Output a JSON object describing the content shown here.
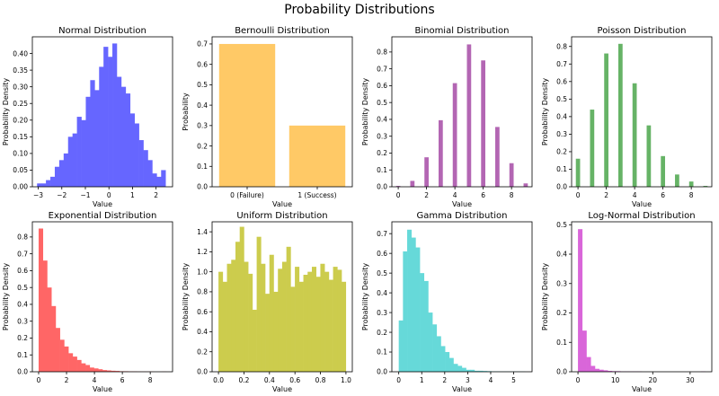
{
  "figure": {
    "title": "Probability Distributions"
  },
  "chart_data": [
    {
      "type": "bar",
      "title": "Normal Distribution",
      "xlabel": "Value",
      "ylabel": "Probability Density",
      "color": "#6666ff",
      "histogram": true,
      "xlim": [
        -3.25,
        2.7
      ],
      "ylim": [
        0,
        0.45
      ],
      "xticks": [
        -3,
        -2,
        -1,
        0,
        1,
        2
      ],
      "xticklabels": [
        "−3",
        "−2",
        "−1",
        "0",
        "1",
        "2"
      ],
      "yticks": [
        0,
        0.05,
        0.1,
        0.15,
        0.2,
        0.25,
        0.3,
        0.35,
        0.4
      ],
      "yticklabels": [
        "0.00",
        "0.05",
        "0.10",
        "0.15",
        "0.20",
        "0.25",
        "0.30",
        "0.35",
        "0.40"
      ],
      "bin_start": -3.05,
      "bin_width": 0.188,
      "values": [
        0.01,
        0.01,
        0.02,
        0.03,
        0.06,
        0.08,
        0.1,
        0.15,
        0.16,
        0.21,
        0.2,
        0.27,
        0.32,
        0.29,
        0.36,
        0.42,
        0.39,
        0.43,
        0.33,
        0.3,
        0.28,
        0.22,
        0.19,
        0.14,
        0.11,
        0.08,
        0.04,
        0.03,
        0.05
      ]
    },
    {
      "type": "bar",
      "title": "Bernoulli Distribution",
      "xlabel": "Value",
      "ylabel": "Probability",
      "color": "#ffc966",
      "categories": [
        "0 (Failure)",
        "1 (Success)"
      ],
      "values": [
        0.7,
        0.3
      ],
      "ylim": [
        0,
        0.735
      ],
      "yticks": [
        0,
        0.1,
        0.2,
        0.3,
        0.4,
        0.5,
        0.6,
        0.7
      ],
      "yticklabels": [
        "0.0",
        "0.1",
        "0.2",
        "0.3",
        "0.4",
        "0.5",
        "0.6",
        "0.7"
      ]
    },
    {
      "type": "bar",
      "title": "Binomial Distribution",
      "xlabel": "Value",
      "ylabel": "Probability Density",
      "color": "#b366b3",
      "histogram": true,
      "xlim": [
        -0.45,
        9.45
      ],
      "ylim": [
        0,
        0.89
      ],
      "xticks": [
        0,
        2,
        4,
        6,
        8
      ],
      "xticklabels": [
        "0",
        "2",
        "4",
        "6",
        "8"
      ],
      "yticks": [
        0,
        0.1,
        0.2,
        0.3,
        0.4,
        0.5,
        0.6,
        0.7,
        0.8
      ],
      "yticklabels": [
        "0.0",
        "0.1",
        "0.2",
        "0.3",
        "0.4",
        "0.5",
        "0.6",
        "0.7",
        "0.8"
      ],
      "bin_start": 0,
      "bin_width": 0.3,
      "bars": [
        [
          0,
          0.005
        ],
        [
          1,
          0.035
        ],
        [
          2,
          0.175
        ],
        [
          3,
          0.395
        ],
        [
          4,
          0.615
        ],
        [
          5,
          0.845
        ],
        [
          6,
          0.75
        ],
        [
          7,
          0.355
        ],
        [
          8,
          0.14
        ],
        [
          9,
          0.02
        ]
      ]
    },
    {
      "type": "bar",
      "title": "Poisson Distribution",
      "xlabel": "Value",
      "ylabel": "Probability Density",
      "color": "#66b366",
      "histogram": true,
      "xlim": [
        -0.45,
        9.45
      ],
      "ylim": [
        0,
        0.855
      ],
      "xticks": [
        0,
        2,
        4,
        6,
        8
      ],
      "xticklabels": [
        "0",
        "2",
        "4",
        "6",
        "8"
      ],
      "yticks": [
        0,
        0.1,
        0.2,
        0.3,
        0.4,
        0.5,
        0.6,
        0.7,
        0.8
      ],
      "yticklabels": [
        "0.0",
        "0.1",
        "0.2",
        "0.3",
        "0.4",
        "0.5",
        "0.6",
        "0.7",
        "0.8"
      ],
      "bin_start": 0,
      "bin_width": 0.3,
      "bars": [
        [
          0,
          0.16
        ],
        [
          1,
          0.44
        ],
        [
          2,
          0.76
        ],
        [
          3,
          0.815
        ],
        [
          4,
          0.59
        ],
        [
          5,
          0.35
        ],
        [
          6,
          0.175
        ],
        [
          7,
          0.07
        ],
        [
          8,
          0.03
        ],
        [
          9,
          0.005
        ]
      ]
    },
    {
      "type": "bar",
      "title": "Exponential Distribution",
      "xlabel": "Value",
      "ylabel": "Probability Density",
      "color": "#ff6666",
      "histogram": true,
      "xlim": [
        -0.45,
        9.6
      ],
      "ylim": [
        0,
        0.89
      ],
      "xticks": [
        0,
        2,
        4,
        6,
        8
      ],
      "xticklabels": [
        "0",
        "2",
        "4",
        "6",
        "8"
      ],
      "yticks": [
        0,
        0.1,
        0.2,
        0.3,
        0.4,
        0.5,
        0.6,
        0.7,
        0.8
      ],
      "yticklabels": [
        "0.0",
        "0.1",
        "0.2",
        "0.3",
        "0.4",
        "0.5",
        "0.6",
        "0.7",
        "0.8"
      ],
      "bin_start": 0,
      "bin_width": 0.305,
      "values": [
        0.85,
        0.66,
        0.5,
        0.39,
        0.26,
        0.19,
        0.15,
        0.11,
        0.09,
        0.07,
        0.05,
        0.04,
        0.025,
        0.02,
        0.015,
        0.01,
        0.008,
        0.006,
        0.005,
        0.003,
        0.003,
        0.002,
        0.002,
        0.001,
        0.001,
        0.001,
        0.001,
        0,
        0,
        0.001
      ]
    },
    {
      "type": "bar",
      "title": "Uniform Distribution",
      "xlabel": "Value",
      "ylabel": "Probability Density",
      "color": "#cccc4d",
      "histogram": true,
      "xlim": [
        -0.05,
        1.05
      ],
      "ylim": [
        0,
        1.5
      ],
      "xticks": [
        0,
        0.2,
        0.4,
        0.6,
        0.8,
        1.0
      ],
      "xticklabels": [
        "0.0",
        "0.2",
        "0.4",
        "0.6",
        "0.8",
        "1.0"
      ],
      "yticks": [
        0,
        0.2,
        0.4,
        0.6,
        0.8,
        1.0,
        1.2,
        1.4
      ],
      "yticklabels": [
        "0.0",
        "0.2",
        "0.4",
        "0.6",
        "0.8",
        "1.0",
        "1.2",
        "1.4"
      ],
      "bin_start": 0,
      "bin_width": 0.0333,
      "values": [
        1.0,
        0.9,
        1.08,
        1.12,
        1.3,
        1.45,
        1.1,
        0.98,
        0.62,
        1.35,
        1.08,
        0.78,
        1.17,
        0.8,
        1.03,
        1.1,
        1.25,
        0.85,
        1.05,
        0.9,
        0.97,
        1.0,
        1.05,
        0.95,
        1.08,
        1.0,
        0.92,
        1.05,
        1.02,
        0.9
      ]
    },
    {
      "type": "bar",
      "title": "Gamma Distribution",
      "xlabel": "Value",
      "ylabel": "Probability Density",
      "color": "#66d9d9",
      "histogram": true,
      "xlim": [
        -0.3,
        5.8
      ],
      "ylim": [
        0,
        0.76
      ],
      "xticks": [
        0,
        1,
        2,
        3,
        4,
        5
      ],
      "xticklabels": [
        "0",
        "1",
        "2",
        "3",
        "4",
        "5"
      ],
      "yticks": [
        0,
        0.1,
        0.2,
        0.3,
        0.4,
        0.5,
        0.6,
        0.7
      ],
      "yticklabels": [
        "0.0",
        "0.1",
        "0.2",
        "0.3",
        "0.4",
        "0.5",
        "0.6",
        "0.7"
      ],
      "bin_start": 0,
      "bin_width": 0.183,
      "values": [
        0.26,
        0.61,
        0.72,
        0.68,
        0.63,
        0.5,
        0.46,
        0.3,
        0.24,
        0.18,
        0.13,
        0.1,
        0.07,
        0.04,
        0.03,
        0.02,
        0.01,
        0.01,
        0.005,
        0.005,
        0.004,
        0.003,
        0.002,
        0.002,
        0.001,
        0.001,
        0.001,
        0.001,
        0.001,
        0.001
      ]
    },
    {
      "type": "bar",
      "title": "Log-Normal Distribution",
      "xlabel": "Value",
      "ylabel": "Probability Density",
      "color": "#d966d9",
      "histogram": true,
      "xlim": [
        -1.7,
        35.8
      ],
      "ylim": [
        0,
        0.51
      ],
      "xticks": [
        0,
        10,
        20,
        30
      ],
      "xticklabels": [
        "0",
        "10",
        "20",
        "30"
      ],
      "yticks": [
        0,
        0.1,
        0.2,
        0.3,
        0.4,
        0.5
      ],
      "yticklabels": [
        "0.0",
        "0.1",
        "0.2",
        "0.3",
        "0.4",
        "0.5"
      ],
      "bin_start": 0,
      "bin_width": 1.135,
      "values": [
        0.485,
        0.14,
        0.05,
        0.02,
        0.01,
        0.007,
        0.005,
        0.003,
        0.002,
        0.002,
        0.001,
        0.001,
        0.001,
        0.001,
        0.001,
        0,
        0,
        0,
        0,
        0,
        0,
        0,
        0,
        0,
        0,
        0,
        0,
        0,
        0,
        0.001
      ]
    }
  ]
}
